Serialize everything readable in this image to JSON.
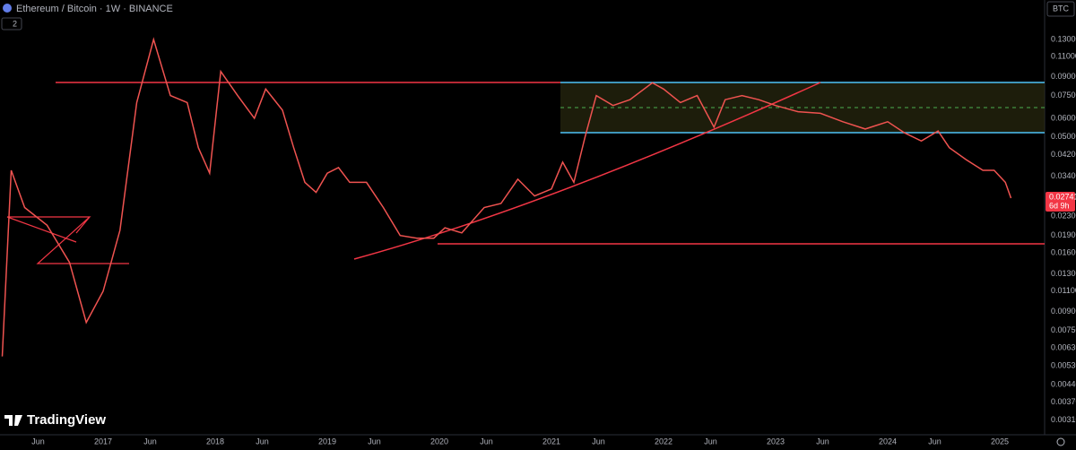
{
  "chart_data": {
    "type": "line",
    "title": "Ethereum / Bitcoin · 1W · BINANCE",
    "indicator_count": "2",
    "currency": "BTC",
    "brand": "TradingView",
    "countdown": "6d 9h",
    "log_scale": true,
    "grid": false,
    "last_price": {
      "value": 0.02741,
      "label": "0.02741"
    },
    "x": [
      2016.1,
      2016.18,
      2016.3,
      2016.5,
      2016.7,
      2016.85,
      2017.0,
      2017.15,
      2017.3,
      2017.45,
      2017.6,
      2017.75,
      2017.85,
      2017.95,
      2018.05,
      2018.2,
      2018.35,
      2018.45,
      2018.6,
      2018.7,
      2018.8,
      2018.9,
      2019.0,
      2019.1,
      2019.2,
      2019.35,
      2019.5,
      2019.65,
      2019.8,
      2019.95,
      2020.05,
      2020.2,
      2020.4,
      2020.55,
      2020.7,
      2020.85,
      2021.0,
      2021.1,
      2021.2,
      2021.3,
      2021.4,
      2021.55,
      2021.7,
      2021.9,
      2022.0,
      2022.15,
      2022.3,
      2022.45,
      2022.55,
      2022.7,
      2022.85,
      2023.0,
      2023.2,
      2023.4,
      2023.6,
      2023.8,
      2024.0,
      2024.15,
      2024.3,
      2024.45,
      2024.55,
      2024.7,
      2024.85,
      2024.95,
      2025.05,
      2025.1
    ],
    "series": [
      {
        "name": "ETHBTC",
        "color": "#ef5350",
        "values": [
          0.0058,
          0.036,
          0.025,
          0.021,
          0.0146,
          0.0081,
          0.011,
          0.02,
          0.07,
          0.13,
          0.075,
          0.07,
          0.045,
          0.035,
          0.095,
          0.075,
          0.06,
          0.08,
          0.065,
          0.045,
          0.032,
          0.029,
          0.035,
          0.037,
          0.032,
          0.032,
          0.025,
          0.019,
          0.0185,
          0.0185,
          0.0205,
          0.0195,
          0.025,
          0.026,
          0.033,
          0.028,
          0.03,
          0.039,
          0.032,
          0.05,
          0.075,
          0.068,
          0.072,
          0.085,
          0.08,
          0.07,
          0.075,
          0.055,
          0.072,
          0.075,
          0.072,
          0.068,
          0.064,
          0.063,
          0.058,
          0.054,
          0.058,
          0.052,
          0.048,
          0.053,
          0.045,
          0.04,
          0.036,
          0.036,
          0.032,
          0.02741
        ]
      }
    ],
    "xlim": [
      2016.08,
      2025.4
    ],
    "xticks": [
      {
        "value": 2016.42,
        "label": "Jun"
      },
      2017,
      {
        "value": 2017.42,
        "label": "Jun"
      },
      2018,
      {
        "value": 2018.42,
        "label": "Jun"
      },
      2019,
      {
        "value": 2019.42,
        "label": "Jun"
      },
      2020,
      {
        "value": 2020.42,
        "label": "Jun"
      },
      2021,
      {
        "value": 2021.42,
        "label": "Jun"
      },
      2022,
      {
        "value": 2022.42,
        "label": "Jun"
      },
      2023,
      {
        "value": 2023.42,
        "label": "Jun"
      },
      2024,
      {
        "value": 2024.42,
        "label": "Jun"
      },
      2025
    ],
    "ylim": [
      0.00269,
      0.1915
    ],
    "yticks": [
      {
        "value": 0.13,
        "label": "0.13000"
      },
      {
        "value": 0.11,
        "label": "0.11000"
      },
      {
        "value": 0.09,
        "label": "0.09000"
      },
      {
        "value": 0.075,
        "label": "0.07500"
      },
      {
        "value": 0.06,
        "label": "0.06000"
      },
      {
        "value": 0.05,
        "label": "0.05000"
      },
      {
        "value": 0.042,
        "label": "0.04200"
      },
      {
        "value": 0.034,
        "label": "0.03400"
      },
      {
        "value": 0.023,
        "label": "0.02300"
      },
      {
        "value": 0.019,
        "label": "0.01900"
      },
      {
        "value": 0.016,
        "label": "0.01600"
      },
      {
        "value": 0.013,
        "label": "0.01300"
      },
      {
        "value": 0.011,
        "label": "0.01100"
      },
      {
        "value": 0.009,
        "label": "0.00900"
      },
      {
        "value": 0.0075,
        "label": "0.00750"
      },
      {
        "value": 0.0063,
        "label": "0.00630"
      },
      {
        "value": 0.0053,
        "label": "0.00530"
      },
      {
        "value": 0.0044,
        "label": "0.00440"
      },
      {
        "value": 0.0037,
        "label": "0.00370"
      },
      {
        "value": 0.0031,
        "label": "0.00310"
      }
    ]
  }
}
